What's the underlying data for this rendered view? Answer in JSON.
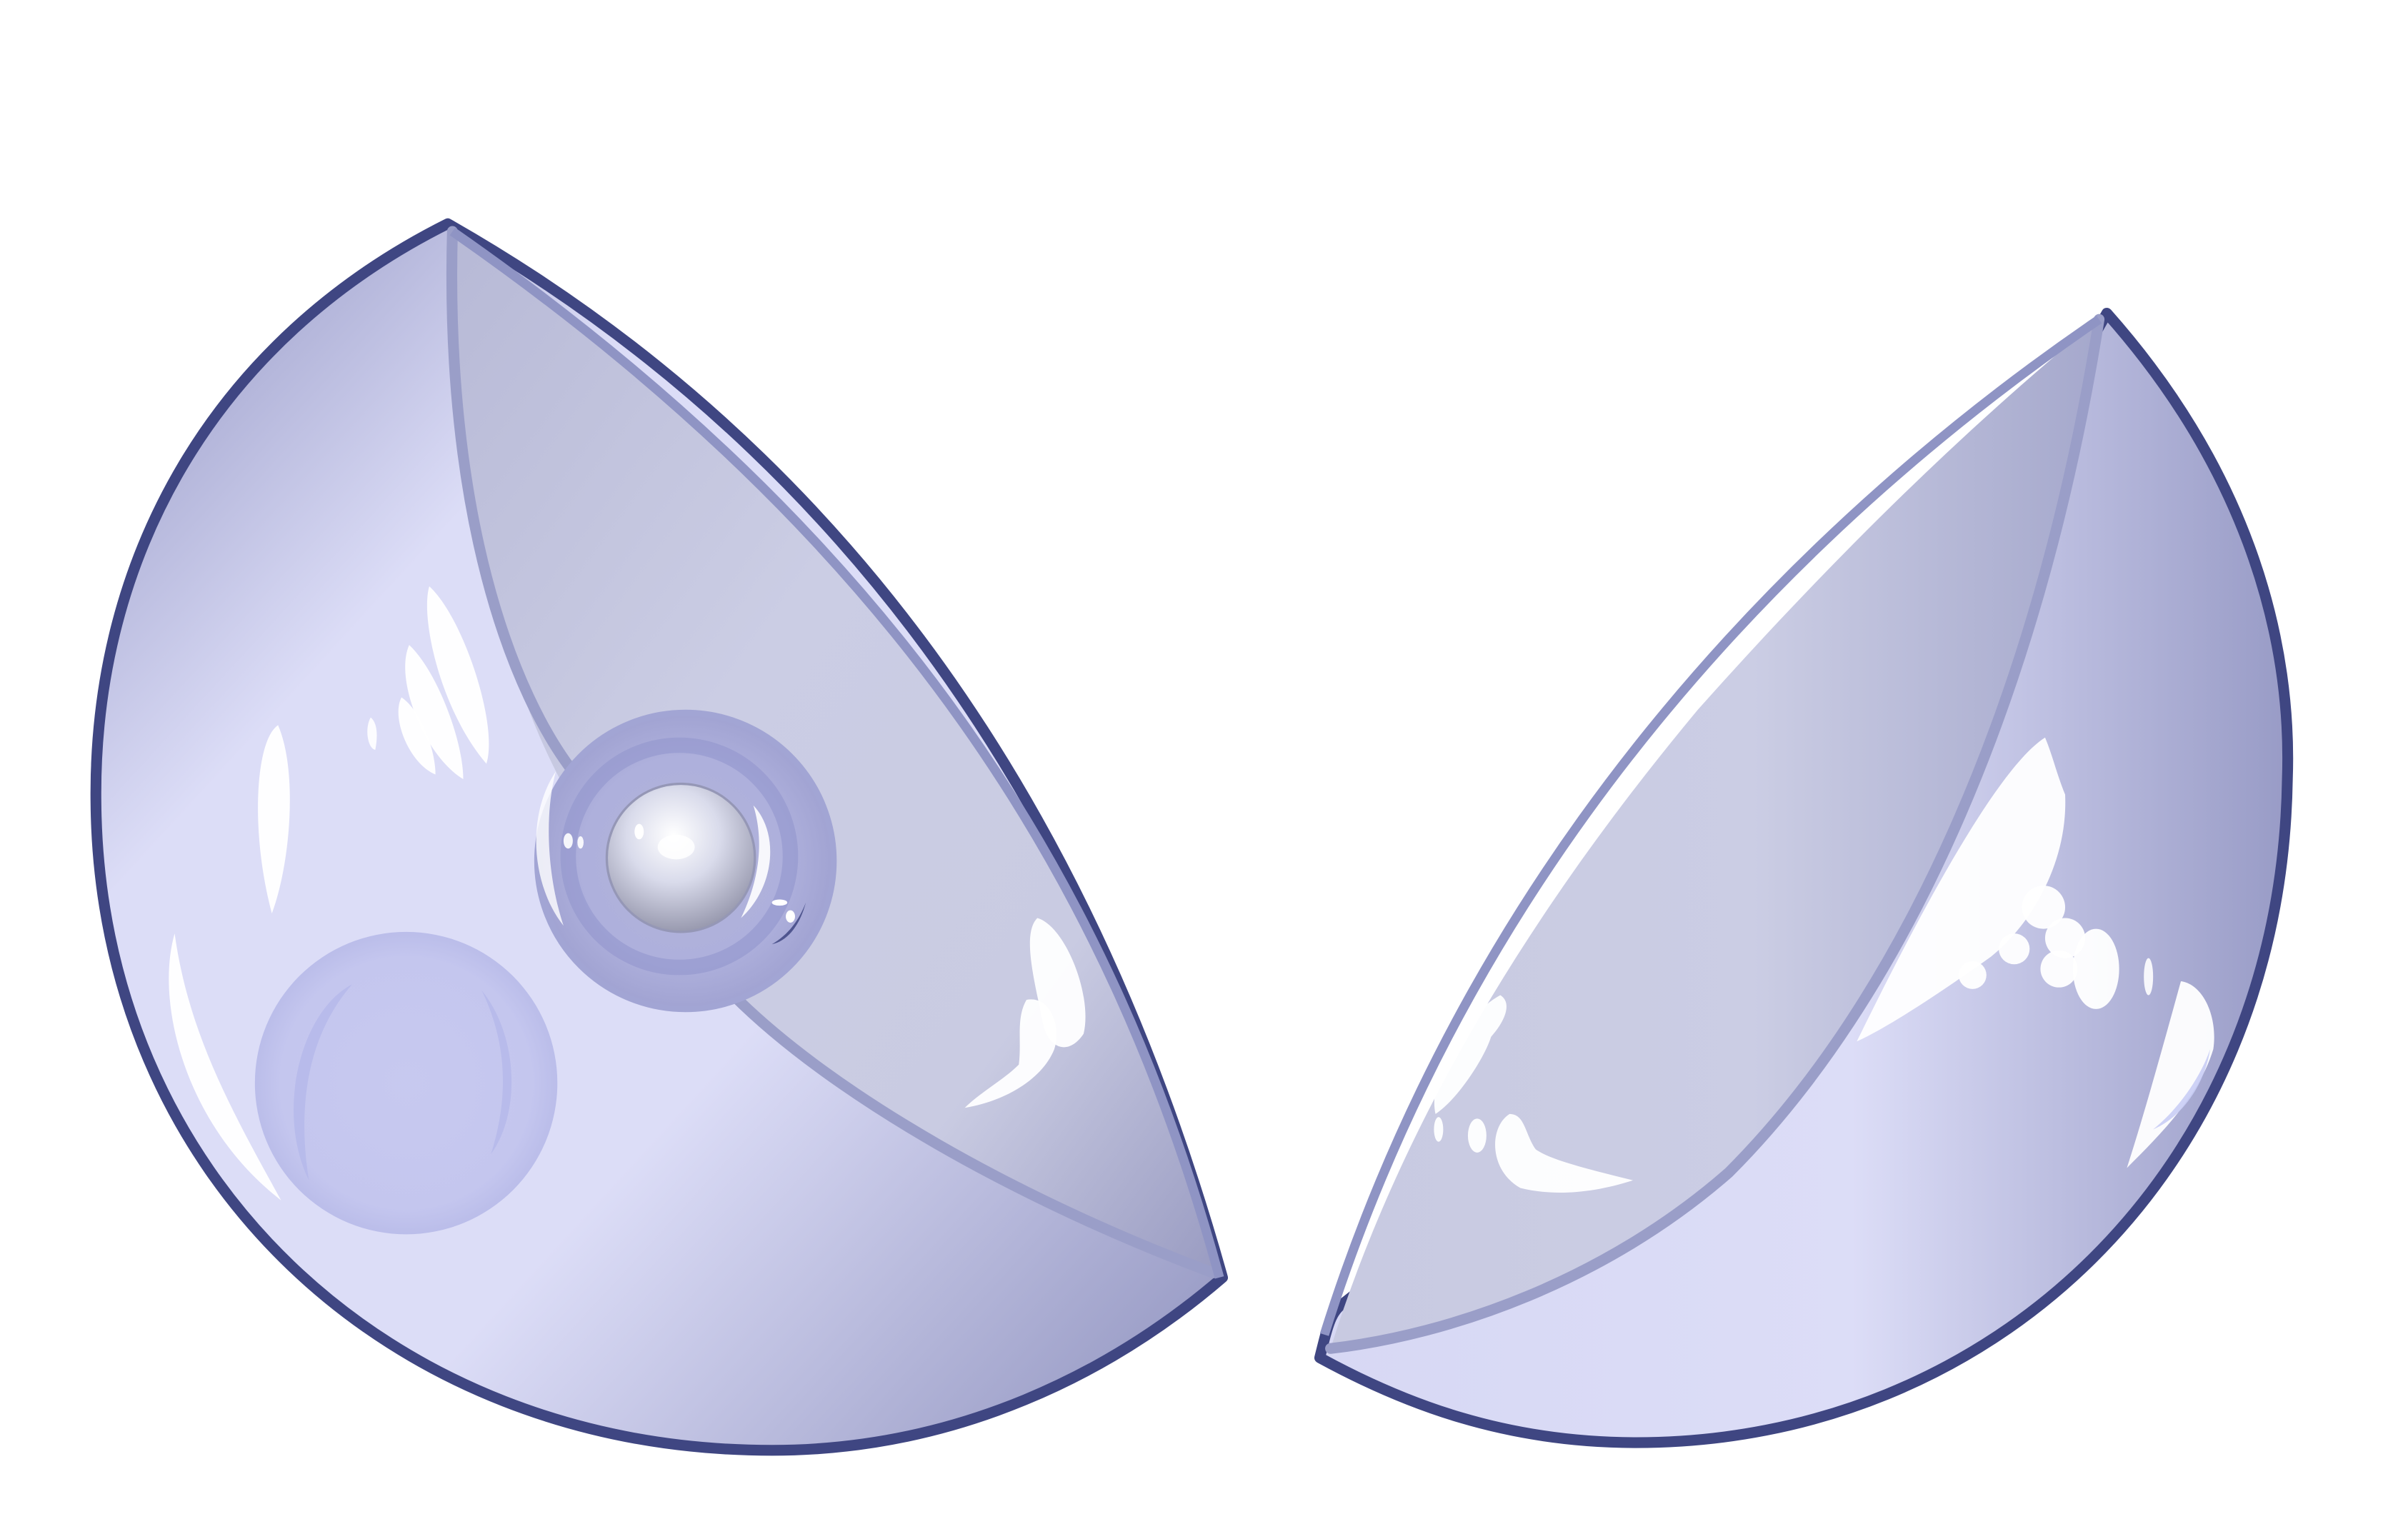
{
  "illustration": {
    "subject": "pair-of-glass-bowls",
    "colors": {
      "background": "#ffffff",
      "outline": "#3f4682",
      "outline_light": "#9a9ec8",
      "glass_light": "#dcddf7",
      "glass_mid": "#c9cce3",
      "glass_dark": "#9b9dc6",
      "highlight": "#ffffff",
      "pearl": "#e6e8f3",
      "bubble": "#c3c5ef"
    },
    "objects": [
      "left-glass-bowl",
      "right-glass-bowl",
      "pearl-in-bubble",
      "floating-bubble"
    ]
  }
}
